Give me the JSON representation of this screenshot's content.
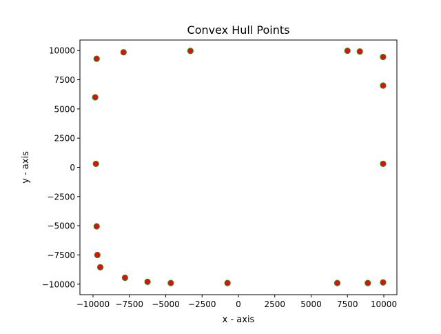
{
  "chart_data": {
    "type": "scatter",
    "title": "Convex Hull Points",
    "xlabel": "x - axis",
    "ylabel": "y - axis",
    "xlim": [
      -10900,
      10900
    ],
    "ylim": [
      -10900,
      10900
    ],
    "xticks": [
      -10000,
      -7500,
      -5000,
      -2500,
      0,
      2500,
      5000,
      7500,
      10000
    ],
    "xtick_labels": [
      "−10000",
      "−7500",
      "−5000",
      "−2500",
      "0",
      "2500",
      "5000",
      "7500",
      "10000"
    ],
    "yticks": [
      -10000,
      -7500,
      -5000,
      -2500,
      0,
      2500,
      5000,
      7500,
      10000
    ],
    "ytick_labels": [
      "−10000",
      "−7500",
      "−5000",
      "−2500",
      "0",
      "2500",
      "5000",
      "7500",
      "10000"
    ],
    "grid": false,
    "marker_face_color": "#ff0000",
    "marker_edge_color": "#228b22",
    "points": [
      {
        "x": -9750,
        "y": 9300
      },
      {
        "x": -7900,
        "y": 9850
      },
      {
        "x": -3300,
        "y": 9970
      },
      {
        "x": 7500,
        "y": 9980
      },
      {
        "x": 8350,
        "y": 9920
      },
      {
        "x": 9950,
        "y": 9450
      },
      {
        "x": 9950,
        "y": 7000
      },
      {
        "x": -9850,
        "y": 6000
      },
      {
        "x": -9800,
        "y": 300
      },
      {
        "x": 9950,
        "y": 300
      },
      {
        "x": -9750,
        "y": -5050
      },
      {
        "x": -9700,
        "y": -7500
      },
      {
        "x": -9500,
        "y": -8550
      },
      {
        "x": -7800,
        "y": -9450
      },
      {
        "x": -6250,
        "y": -9800
      },
      {
        "x": -4650,
        "y": -9900
      },
      {
        "x": -750,
        "y": -9900
      },
      {
        "x": 6800,
        "y": -9900
      },
      {
        "x": 8900,
        "y": -9900
      },
      {
        "x": 9950,
        "y": -9850
      }
    ]
  }
}
